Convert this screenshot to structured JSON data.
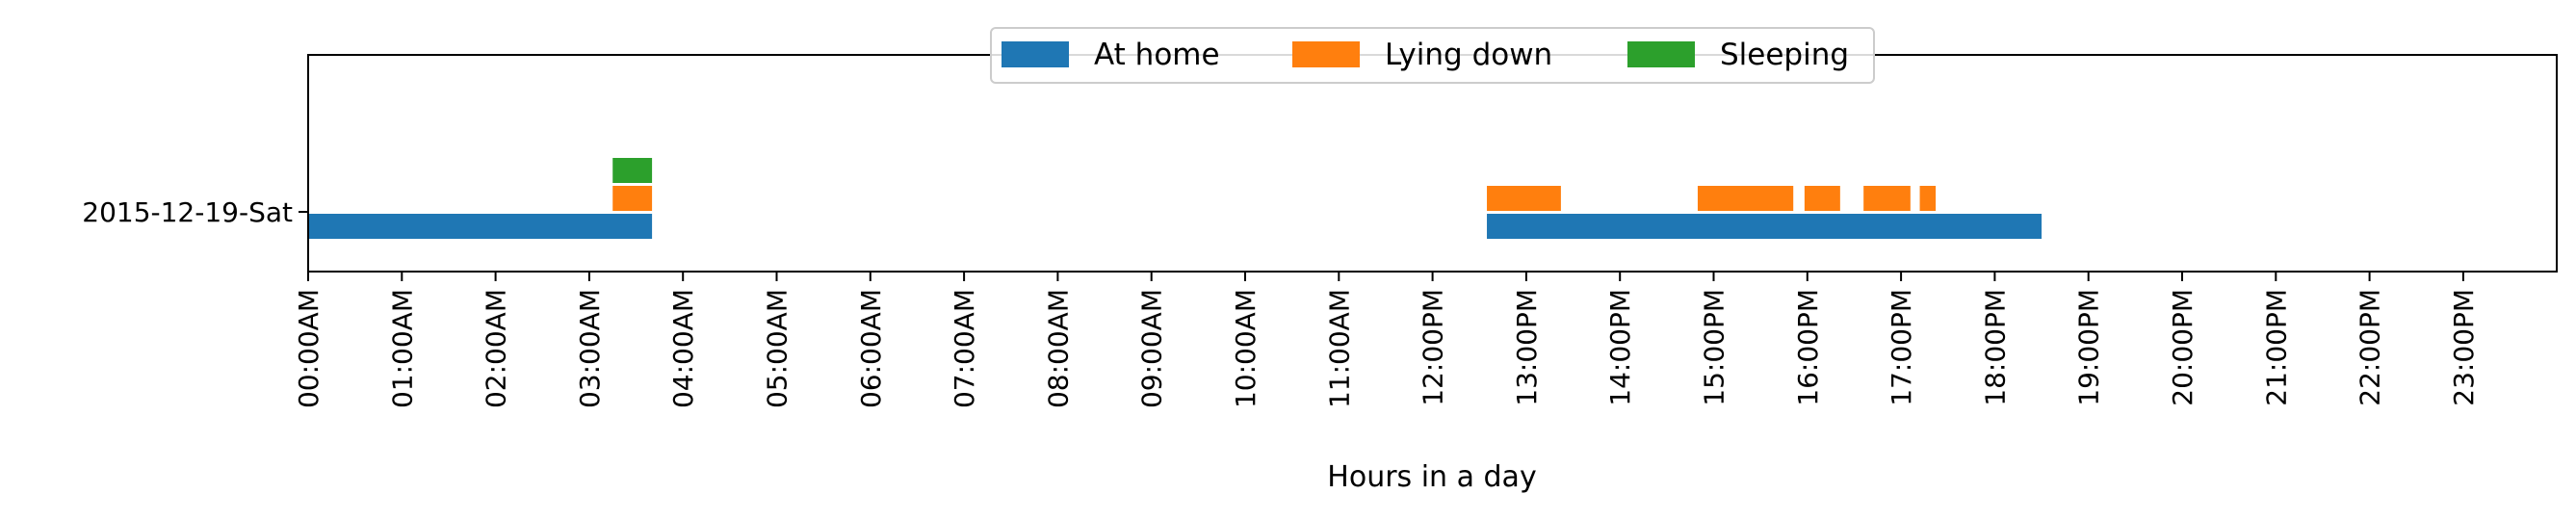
{
  "chart_data": {
    "type": "timeline",
    "title": "",
    "xlabel": "Hours in a day",
    "ylabel": "",
    "xlim_hours": [
      0,
      24
    ],
    "grid": false,
    "legend_position": "top-center",
    "x_ticks": [
      {
        "hour": 0,
        "label": "00:00AM"
      },
      {
        "hour": 1,
        "label": "01:00AM"
      },
      {
        "hour": 2,
        "label": "02:00AM"
      },
      {
        "hour": 3,
        "label": "03:00AM"
      },
      {
        "hour": 4,
        "label": "04:00AM"
      },
      {
        "hour": 5,
        "label": "05:00AM"
      },
      {
        "hour": 6,
        "label": "06:00AM"
      },
      {
        "hour": 7,
        "label": "07:00AM"
      },
      {
        "hour": 8,
        "label": "08:00AM"
      },
      {
        "hour": 9,
        "label": "09:00AM"
      },
      {
        "hour": 10,
        "label": "10:00AM"
      },
      {
        "hour": 11,
        "label": "11:00AM"
      },
      {
        "hour": 12,
        "label": "12:00PM"
      },
      {
        "hour": 13,
        "label": "13:00PM"
      },
      {
        "hour": 14,
        "label": "14:00PM"
      },
      {
        "hour": 15,
        "label": "15:00PM"
      },
      {
        "hour": 16,
        "label": "16:00PM"
      },
      {
        "hour": 17,
        "label": "17:00PM"
      },
      {
        "hour": 18,
        "label": "18:00PM"
      },
      {
        "hour": 19,
        "label": "19:00PM"
      },
      {
        "hour": 20,
        "label": "20:00PM"
      },
      {
        "hour": 21,
        "label": "21:00PM"
      },
      {
        "hour": 22,
        "label": "22:00PM"
      },
      {
        "hour": 23,
        "label": "23:00PM"
      }
    ],
    "categories": [
      "2015-12-19-Sat"
    ],
    "series": [
      {
        "name": "At home",
        "color": "#1f77b4",
        "intervals": [
          {
            "day": "2015-12-19-Sat",
            "start_hour": 0.0,
            "end_hour": 3.67
          },
          {
            "day": "2015-12-19-Sat",
            "start_hour": 12.58,
            "end_hour": 18.5
          }
        ]
      },
      {
        "name": "Lying down",
        "color": "#ff7f0e",
        "intervals": [
          {
            "day": "2015-12-19-Sat",
            "start_hour": 3.25,
            "end_hour": 3.67
          },
          {
            "day": "2015-12-19-Sat",
            "start_hour": 12.58,
            "end_hour": 13.37
          },
          {
            "day": "2015-12-19-Sat",
            "start_hour": 14.83,
            "end_hour": 15.85
          },
          {
            "day": "2015-12-19-Sat",
            "start_hour": 15.97,
            "end_hour": 16.35
          },
          {
            "day": "2015-12-19-Sat",
            "start_hour": 16.6,
            "end_hour": 17.1
          },
          {
            "day": "2015-12-19-Sat",
            "start_hour": 17.2,
            "end_hour": 17.37
          }
        ]
      },
      {
        "name": "Sleeping",
        "color": "#2ca02c",
        "intervals": [
          {
            "day": "2015-12-19-Sat",
            "start_hour": 3.25,
            "end_hour": 3.67
          }
        ]
      }
    ]
  }
}
